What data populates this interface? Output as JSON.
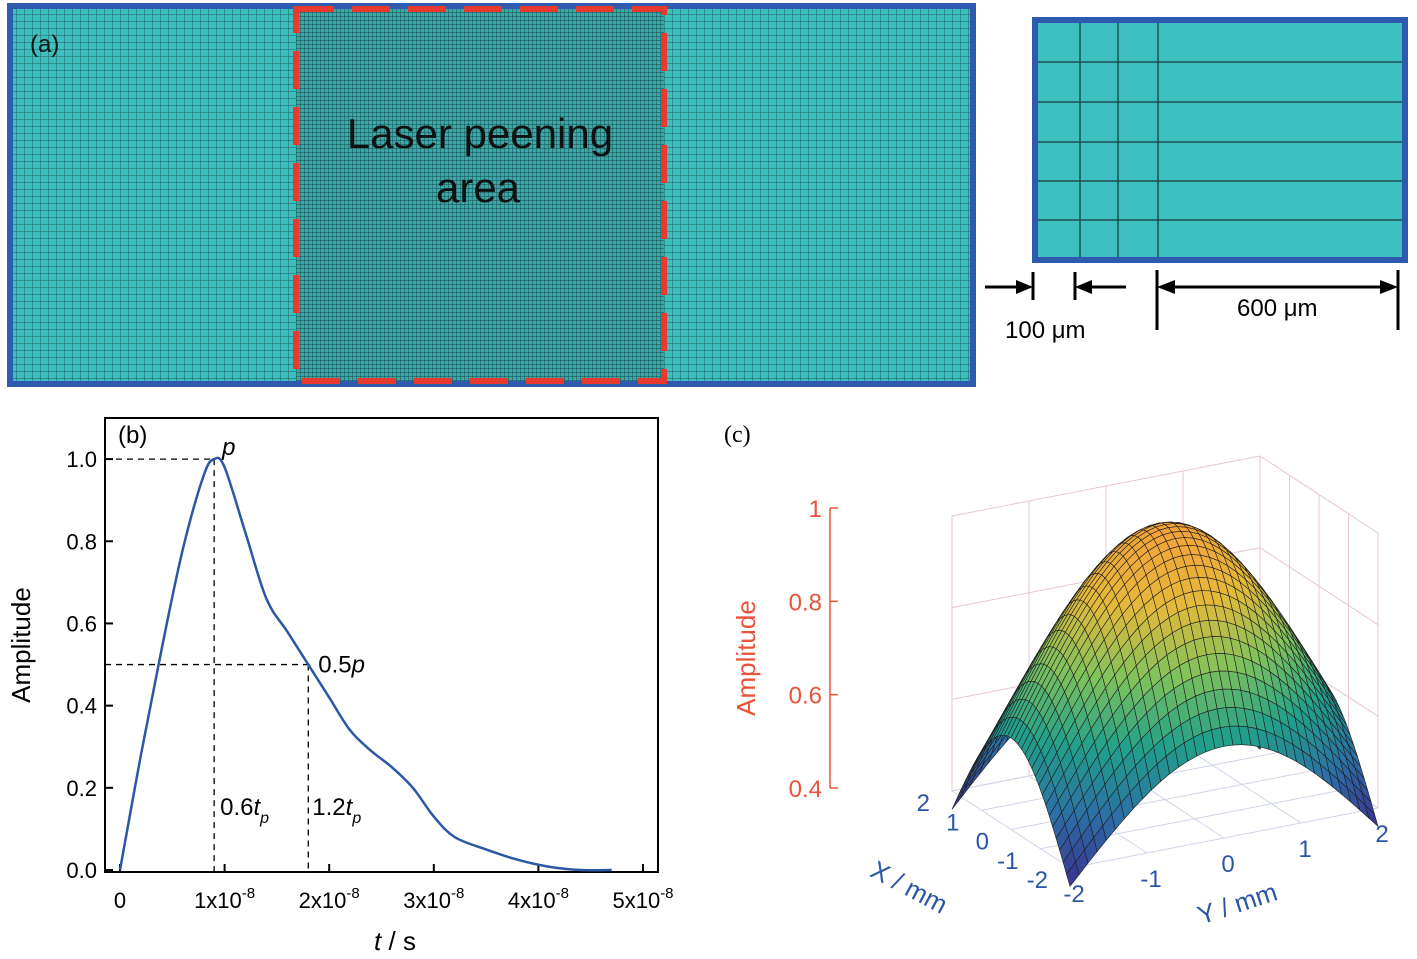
{
  "panel_a": {
    "label": "(a)",
    "area_label_line1": "Laser peening",
    "area_label_line2": "area",
    "dim_small": "100 μm",
    "dim_large": "600 μm",
    "colors": {
      "mesh": "#3dbfbf",
      "border": "#2e5bb0",
      "dash": "#e8392e"
    }
  },
  "chart_data": [
    {
      "type": "line",
      "panel_label": "(b)",
      "xlabel": "t / s",
      "ylabel": "Amplitude",
      "xlim": [
        0,
        5e-08
      ],
      "ylim": [
        0,
        1.1
      ],
      "x_ticks": [
        0,
        1e-08,
        2e-08,
        3e-08,
        4e-08,
        5e-08
      ],
      "x_tick_labels": [
        "0",
        "1x10",
        "2x10",
        "3x10",
        "4x10",
        "5x10"
      ],
      "x_tick_exponent": "-8",
      "y_ticks": [
        0,
        0.2,
        0.4,
        0.6,
        0.8,
        1.0
      ],
      "y_tick_labels": [
        "0.0",
        "0.2",
        "0.4",
        "0.6",
        "0.8",
        "1.0"
      ],
      "series": [
        {
          "color": "#2b57a5",
          "x": [
            0,
            2e-09,
            4e-09,
            6e-09,
            8e-09,
            9e-09,
            1e-08,
            1.2e-08,
            1.4e-08,
            1.6e-08,
            1.8e-08,
            2e-08,
            2.2e-08,
            2.4e-08,
            2.6e-08,
            2.8e-08,
            3e-08,
            3.2e-08,
            3.5e-08,
            3.8e-08,
            4.1e-08,
            4.4e-08,
            4.7e-08
          ],
          "y": [
            0,
            0.28,
            0.54,
            0.78,
            0.96,
            1.0,
            0.98,
            0.82,
            0.66,
            0.58,
            0.5,
            0.42,
            0.34,
            0.29,
            0.25,
            0.2,
            0.13,
            0.08,
            0.05,
            0.025,
            0.008,
            0,
            0
          ]
        }
      ],
      "annotations": {
        "peak": "p",
        "half_prefix": "0.5",
        "half_var": "p",
        "t1_coef": "0.6",
        "t2_coef": "1.2",
        "t_var": "t",
        "t_sub": "p"
      },
      "reference_points": {
        "peak_x": 9e-09,
        "peak_y": 1.0,
        "half_x": 1.8e-08,
        "half_y": 0.5
      }
    },
    {
      "type": "surface",
      "panel_label": "(c)",
      "xlabel": "X / mm",
      "ylabel": "Y / mm",
      "zlabel": "Amplitude",
      "xlim": [
        -2,
        2
      ],
      "ylim": [
        -2,
        2
      ],
      "zlim": [
        0.4,
        1
      ],
      "x_ticks": [
        "2",
        "1",
        "0",
        "-1",
        "-2"
      ],
      "y_ticks": [
        "-2",
        "-1",
        "0",
        "1",
        "2"
      ],
      "z_ticks": [
        "0.4",
        "0.6",
        "0.8",
        "1"
      ],
      "peak_amplitude": 1.0,
      "corner_amplitude": 0.36,
      "colormap": [
        "#3b2f8f",
        "#2c6ea5",
        "#21a08a",
        "#7fc25c",
        "#e3b93a",
        "#f4a23a"
      ],
      "axis_colors": {
        "z": "#e8533a",
        "xy": "#2b57a5"
      }
    }
  ]
}
